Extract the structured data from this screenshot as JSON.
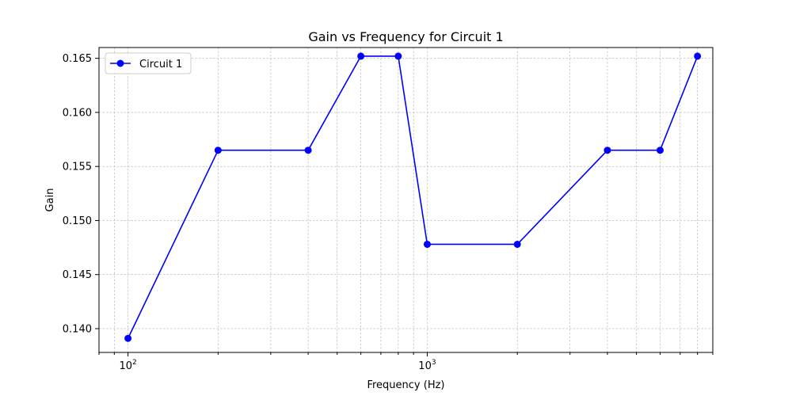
{
  "chart_data": {
    "type": "line",
    "title": "Gain vs Frequency for Circuit 1",
    "xlabel": "Frequency (Hz)",
    "ylabel": "Gain",
    "x_scale": "log",
    "xlim": [
      80,
      9000
    ],
    "ylim": [
      0.1378,
      0.166
    ],
    "x_major_ticks": [
      {
        "value": 100,
        "base": "10",
        "exp": "2"
      },
      {
        "value": 1000,
        "base": "10",
        "exp": "3"
      }
    ],
    "y_ticks": [
      0.14,
      0.145,
      0.15,
      0.155,
      0.16,
      0.165
    ],
    "y_tick_labels": [
      "0.140",
      "0.145",
      "0.150",
      "0.155",
      "0.160",
      "0.165"
    ],
    "grid": true,
    "legend": {
      "position": "top-left",
      "entries": [
        "Circuit 1"
      ]
    },
    "series": [
      {
        "name": "Circuit 1",
        "color": "#0000ff",
        "marker": "circle",
        "x": [
          100,
          200,
          400,
          600,
          800,
          1000,
          2000,
          4000,
          6000,
          8000
        ],
        "y": [
          0.1391,
          0.1565,
          0.1565,
          0.1652,
          0.1652,
          0.1478,
          0.1478,
          0.1565,
          0.1565,
          0.1652
        ]
      }
    ]
  }
}
